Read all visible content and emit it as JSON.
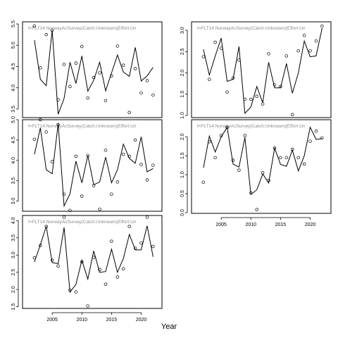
{
  "chart_data": {
    "type": "scatter",
    "xlabel": "Year",
    "panels": [
      {
        "title": "f=FLT14:NorwayAcSurvey(Catch:Unknown)(Effort:Un",
        "xlim": [
          2000,
          2023.5
        ],
        "ylim": [
          3.3,
          5.55
        ],
        "yticks": [
          "3.5",
          "4.0",
          "4.5",
          "5.0",
          "5.5"
        ],
        "show_x_ticks": false,
        "series": [
          {
            "kind": "points",
            "x": [
              2002,
              2003,
              2004,
              2005,
              2006,
              2007,
              2008,
              2009,
              2010,
              2011,
              2012,
              2013,
              2014,
              2015,
              2016,
              2017,
              2018,
              2019,
              2020,
              2021,
              2022
            ],
            "values": [
              5.45,
              4.47,
              5.25,
              5.35,
              3.72,
              4.55,
              4.03,
              4.58,
              4.97,
              3.76,
              4.24,
              4.35,
              3.7,
              4.28,
              4.98,
              4.53,
              3.42,
              4.45,
              3.88,
              4.17,
              3.83
            ]
          },
          {
            "kind": "line",
            "x": [
              2002,
              2003,
              2004,
              2005,
              2006,
              2007,
              2008,
              2009,
              2010,
              2011,
              2012,
              2013,
              2014,
              2015,
              2016,
              2017,
              2018,
              2019,
              2020,
              2021,
              2022
            ],
            "values": [
              5.12,
              4.2,
              4.05,
              5.35,
              3.38,
              3.75,
              4.6,
              4.1,
              4.75,
              3.92,
              4.18,
              4.6,
              3.93,
              4.35,
              4.77,
              4.37,
              4.27,
              4.95,
              4.16,
              4.28,
              4.48
            ]
          }
        ]
      },
      {
        "title": "f=FLT14:NorwayAcSurvey(Catch:Unknown)(Effort:Un",
        "xlim": [
          2000,
          2023.5
        ],
        "ylim": [
          0.95,
          3.2
        ],
        "yticks": [
          "1.0",
          "1.5",
          "2.0",
          "2.5",
          "3.0"
        ],
        "show_x_ticks": false,
        "series": [
          {
            "kind": "points",
            "x": [
              2002,
              2003,
              2004,
              2005,
              2006,
              2007,
              2008,
              2009,
              2010,
              2011,
              2012,
              2013,
              2014,
              2015,
              2016,
              2017,
              2018,
              2019,
              2020,
              2021,
              2022
            ],
            "values": [
              2.38,
              1.85,
              2.72,
              2.58,
              1.55,
              1.88,
              2.3,
              1.38,
              1.38,
              1.45,
              1.27,
              2.45,
              1.72,
              1.68,
              2.4,
              1.02,
              2.52,
              2.88,
              2.52,
              2.75,
              3.1
            ]
          },
          {
            "kind": "line",
            "x": [
              2002,
              2003,
              2004,
              2005,
              2006,
              2007,
              2008,
              2009,
              2010,
              2011,
              2012,
              2013,
              2014,
              2015,
              2016,
              2017,
              2018,
              2019,
              2020,
              2021,
              2022
            ],
            "values": [
              2.55,
              1.95,
              2.4,
              2.82,
              1.8,
              1.85,
              2.62,
              1.05,
              1.2,
              1.68,
              1.3,
              2.25,
              1.65,
              1.65,
              2.22,
              1.52,
              2.0,
              2.75,
              2.38,
              2.4,
              3.05
            ]
          }
        ]
      },
      {
        "title": "f=FLT14:NorwayAcSurvey(Catch:Unknown)(Effort:Un",
        "xlim": [
          2000,
          2023.5
        ],
        "ylim": [
          2.75,
          5.0
        ],
        "yticks": [
          "3.0",
          "3.5",
          "4.0",
          "4.5",
          "5.0"
        ],
        "show_x_ticks": false,
        "series": [
          {
            "kind": "points",
            "x": [
              2002,
              2003,
              2004,
              2005,
              2006,
              2007,
              2008,
              2009,
              2010,
              2011,
              2012,
              2013,
              2014,
              2015,
              2016,
              2017,
              2018,
              2019,
              2020,
              2021,
              2022
            ],
            "values": [
              4.52,
              5.0,
              4.7,
              3.97,
              4.88,
              3.17,
              2.77,
              4.1,
              3.12,
              4.12,
              3.38,
              2.8,
              4.25,
              3.17,
              3.47,
              4.15,
              4.1,
              4.5,
              3.9,
              3.52,
              3.88
            ]
          },
          {
            "kind": "line",
            "x": [
              2002,
              2003,
              2004,
              2005,
              2006,
              2007,
              2008,
              2009,
              2010,
              2011,
              2012,
              2013,
              2014,
              2015,
              2016,
              2017,
              2018,
              2019,
              2020,
              2021,
              2022
            ],
            "values": [
              4.15,
              4.8,
              3.77,
              3.67,
              4.9,
              2.88,
              3.18,
              3.98,
              3.45,
              4.12,
              3.4,
              3.47,
              4.08,
              3.45,
              3.77,
              4.4,
              4.05,
              3.93,
              4.58,
              3.72,
              3.8
            ]
          }
        ]
      },
      {
        "title": "f=FLT14:NorwayAcSurvey(Catch:Unknown)(Effort:Un",
        "xlim": [
          2000,
          2023.5
        ],
        "ylim": [
          -0.02,
          2.45
        ],
        "yticks": [
          "0.0",
          "0.5",
          "1.0",
          "1.5",
          "2.0"
        ],
        "show_x_ticks": true,
        "xticks": [
          "2005",
          "2010",
          "2015",
          "2020"
        ],
        "series": [
          {
            "kind": "points",
            "x": [
              2002,
              2003,
              2004,
              2005,
              2006,
              2007,
              2008,
              2009,
              2010,
              2011,
              2012,
              2013,
              2014,
              2015,
              2016,
              2017,
              2018,
              2019,
              2020,
              2021,
              2022
            ],
            "values": [
              0.8,
              1.87,
              1.45,
              2.03,
              2.25,
              1.38,
              1.12,
              2.03,
              0.52,
              0.08,
              1.05,
              0.85,
              1.7,
              1.45,
              1.45,
              1.67,
              1.45,
              1.28,
              1.88,
              2.15,
              1.97
            ]
          },
          {
            "kind": "line",
            "x": [
              2002,
              2003,
              2004,
              2005,
              2006,
              2007,
              2008,
              2009,
              2010,
              2011,
              2012,
              2013,
              2014,
              2015,
              2016,
              2017,
              2018,
              2019,
              2020,
              2021,
              2022
            ],
            "values": [
              1.18,
              2.02,
              1.6,
              2.0,
              2.25,
              1.28,
              1.2,
              1.98,
              0.48,
              0.6,
              1.02,
              0.78,
              1.7,
              1.27,
              1.22,
              1.65,
              1.1,
              1.5,
              2.25,
              1.93,
              1.95
            ]
          }
        ]
      },
      {
        "title": "f=FLT14:NorwayAcSurvey(Catch:Unknown)(Effort:Un",
        "xlim": [
          2000,
          2023.5
        ],
        "ylim": [
          1.45,
          4.15
        ],
        "yticks": [
          "1.5",
          "2.0",
          "2.5",
          "3.0",
          "3.5",
          "4.0"
        ],
        "show_x_ticks": true,
        "xticks": [
          "2005",
          "2010",
          "2015",
          "2020"
        ],
        "series": [
          {
            "kind": "points",
            "x": [
              2002,
              2003,
              2004,
              2005,
              2006,
              2007,
              2008,
              2009,
              2010,
              2011,
              2012,
              2013,
              2014,
              2015,
              2016,
              2017,
              2018,
              2019,
              2020,
              2021,
              2022
            ],
            "values": [
              2.92,
              3.28,
              3.83,
              2.85,
              2.68,
              4.1,
              1.98,
              1.93,
              2.8,
              1.52,
              2.93,
              2.58,
              2.15,
              3.4,
              2.36,
              2.6,
              3.83,
              3.2,
              3.35,
              4.1,
              3.25
            ]
          },
          {
            "kind": "line",
            "x": [
              2002,
              2003,
              2004,
              2005,
              2006,
              2007,
              2008,
              2009,
              2010,
              2011,
              2012,
              2013,
              2014,
              2015,
              2016,
              2017,
              2018,
              2019,
              2020,
              2021,
              2022
            ],
            "values": [
              2.8,
              3.3,
              3.83,
              2.78,
              2.75,
              3.8,
              1.92,
              2.15,
              2.85,
              2.3,
              3.12,
              2.5,
              2.52,
              3.17,
              2.5,
              2.9,
              3.6,
              3.15,
              3.15,
              3.85,
              2.95
            ]
          }
        ]
      }
    ]
  }
}
